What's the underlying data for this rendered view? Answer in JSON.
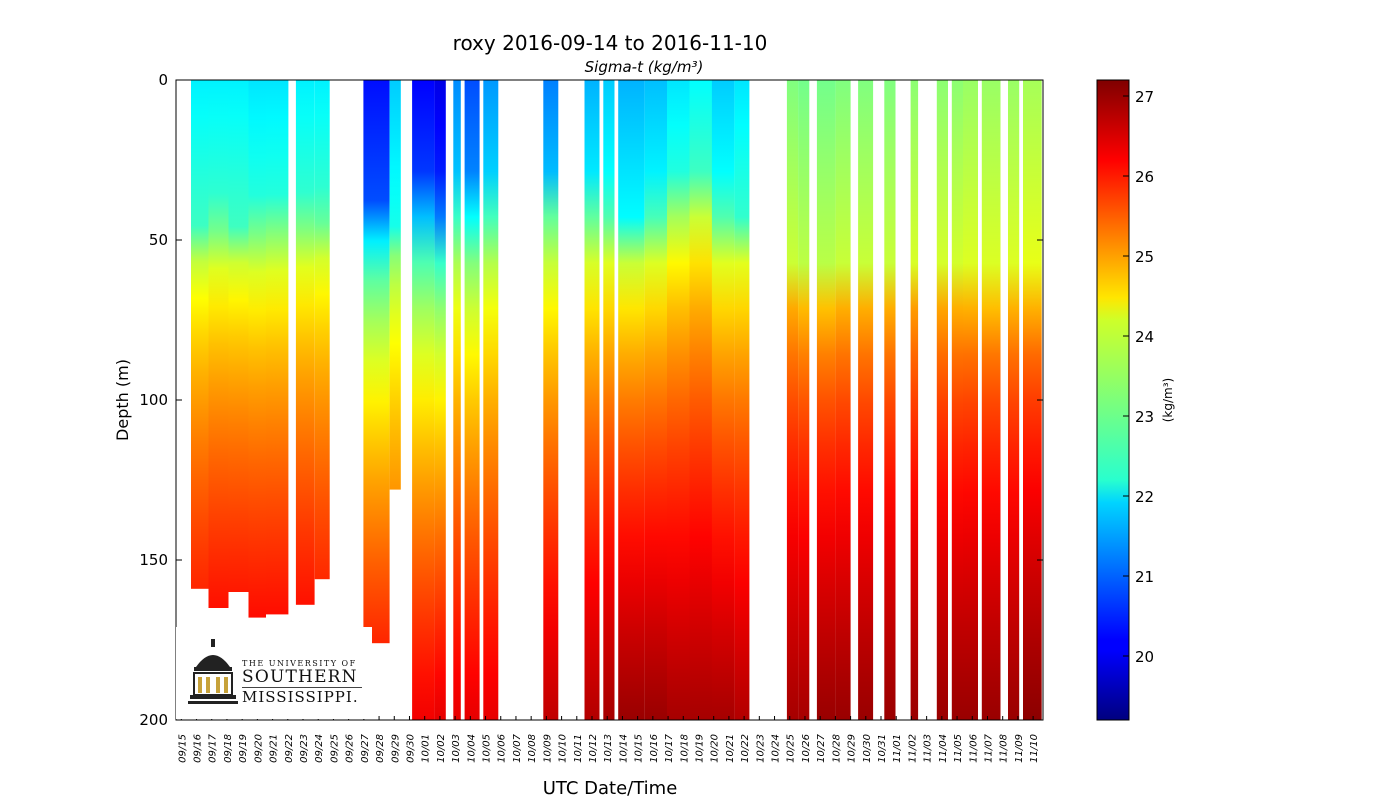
{
  "chart_data": {
    "type": "heatmap",
    "title": "roxy 2016-09-14 to 2016-11-10",
    "subtitle": "Sigma-t (kg/m³)",
    "xlabel": "UTC Date/Time",
    "ylabel": "Depth (m)",
    "ylim": [
      200,
      0
    ],
    "y_ticks": [
      0,
      50,
      100,
      150,
      200
    ],
    "x_start": "2016-09-14",
    "x_end": "2016-11-10",
    "x_tick_labels": [
      "09/15",
      "09/16",
      "09/17",
      "09/18",
      "09/19",
      "09/20",
      "09/21",
      "09/22",
      "09/23",
      "09/24",
      "09/25",
      "09/26",
      "09/27",
      "09/28",
      "09/29",
      "09/30",
      "10/01",
      "10/02",
      "10/03",
      "10/04",
      "10/05",
      "10/06",
      "10/07",
      "10/08",
      "10/09",
      "10/10",
      "10/11",
      "10/12",
      "10/13",
      "10/14",
      "10/15",
      "10/16",
      "10/17",
      "10/18",
      "10/19",
      "10/20",
      "10/21",
      "10/22",
      "10/23",
      "10/24",
      "10/25",
      "10/26",
      "10/27",
      "10/28",
      "10/29",
      "10/30",
      "10/31",
      "11/01",
      "11/02",
      "11/03",
      "11/04",
      "11/05",
      "11/06",
      "11/07",
      "11/08",
      "11/09",
      "11/10"
    ],
    "colorbar": {
      "label": "(kg/m³)",
      "min": 19.2,
      "max": 27.2,
      "ticks": [
        20,
        21,
        22,
        23,
        24,
        25,
        26,
        27
      ],
      "colormap": "jet"
    },
    "profiles": [
      {
        "start": "2016-09-15T00:00",
        "end": "2016-09-16T04:00",
        "surface": 22.1,
        "mixed_depth": 48,
        "bottom": 159,
        "max": 26.4
      },
      {
        "start": "2016-09-16T04:00",
        "end": "2016-09-17T12:00",
        "surface": 22.1,
        "mixed_depth": 46,
        "bottom": 165,
        "max": 26.5
      },
      {
        "start": "2016-09-17T12:00",
        "end": "2016-09-18T20:00",
        "surface": 22.1,
        "mixed_depth": 47,
        "bottom": 160,
        "max": 26.5
      },
      {
        "start": "2016-09-18T20:00",
        "end": "2016-09-20T00:00",
        "surface": 22.0,
        "mixed_depth": 46,
        "bottom": 168,
        "max": 26.5
      },
      {
        "start": "2016-09-20T00:00",
        "end": "2016-09-21T12:00",
        "surface": 22.0,
        "mixed_depth": 45,
        "bottom": 167,
        "max": 26.5
      },
      {
        "start": "2016-09-22T00:00",
        "end": "2016-09-23T06:00",
        "surface": 22.1,
        "mixed_depth": 45,
        "bottom": 164,
        "max": 26.5
      },
      {
        "start": "2016-09-23T06:00",
        "end": "2016-09-24T06:00",
        "surface": 22.1,
        "mixed_depth": 44,
        "bottom": 156,
        "max": 26.4
      },
      {
        "start": "2016-09-26T12:00",
        "end": "2016-09-28T06:00",
        "surface": 20.3,
        "mixed_depth": 45,
        "bottom": 176,
        "max": 26.3
      },
      {
        "start": "2016-09-28T06:00",
        "end": "2016-09-29T00:00",
        "surface": 21.8,
        "mixed_depth": 48,
        "bottom": 128,
        "max": 25.9
      },
      {
        "start": "2016-09-29T18:00",
        "end": "2016-10-01T06:00",
        "surface": 20.2,
        "mixed_depth": 40,
        "bottom": 200,
        "max": 26.3
      },
      {
        "start": "2016-10-01T06:00",
        "end": "2016-10-02T00:00",
        "surface": 20.0,
        "mixed_depth": 42,
        "bottom": 200,
        "max": 26.4
      },
      {
        "start": "2016-10-02T12:00",
        "end": "2016-10-03T00:00",
        "surface": 21.3,
        "mixed_depth": 40,
        "bottom": 200,
        "max": 26.4
      },
      {
        "start": "2016-10-03T06:00",
        "end": "2016-10-04T06:00",
        "surface": 20.8,
        "mixed_depth": 40,
        "bottom": 200,
        "max": 26.4
      },
      {
        "start": "2016-10-04T12:00",
        "end": "2016-10-05T12:00",
        "surface": 21.4,
        "mixed_depth": 40,
        "bottom": 200,
        "max": 26.4
      },
      {
        "start": "2016-10-08T12:00",
        "end": "2016-10-09T12:00",
        "surface": 21.2,
        "mixed_depth": 36,
        "bottom": 200,
        "max": 26.7
      },
      {
        "start": "2016-10-11T06:00",
        "end": "2016-10-12T06:00",
        "surface": 21.6,
        "mixed_depth": 40,
        "bottom": 200,
        "max": 26.8
      },
      {
        "start": "2016-10-12T12:00",
        "end": "2016-10-13T06:00",
        "surface": 21.8,
        "mixed_depth": 42,
        "bottom": 200,
        "max": 26.9
      },
      {
        "start": "2016-10-13T12:00",
        "end": "2016-10-15T06:00",
        "surface": 21.6,
        "mixed_depth": 44,
        "bottom": 200,
        "max": 27.0
      },
      {
        "start": "2016-10-15T06:00",
        "end": "2016-10-16T18:00",
        "surface": 21.7,
        "mixed_depth": 42,
        "bottom": 200,
        "max": 27.0
      },
      {
        "start": "2016-10-16T18:00",
        "end": "2016-10-18T06:00",
        "surface": 22.0,
        "mixed_depth": 38,
        "bottom": 200,
        "max": 26.9
      },
      {
        "start": "2016-10-18T06:00",
        "end": "2016-10-19T18:00",
        "surface": 22.2,
        "mixed_depth": 36,
        "bottom": 200,
        "max": 26.9
      },
      {
        "start": "2016-10-19T18:00",
        "end": "2016-10-21T06:00",
        "surface": 21.8,
        "mixed_depth": 42,
        "bottom": 200,
        "max": 26.9
      },
      {
        "start": "2016-10-21T06:00",
        "end": "2016-10-22T06:00",
        "surface": 22.0,
        "mixed_depth": 44,
        "bottom": 200,
        "max": 26.8
      },
      {
        "start": "2016-10-24T18:00",
        "end": "2016-10-25T12:00",
        "surface": 23.2,
        "mixed_depth": 58,
        "bottom": 200,
        "max": 26.9
      },
      {
        "start": "2016-10-25T12:00",
        "end": "2016-10-26T06:00",
        "surface": 23.1,
        "mixed_depth": 60,
        "bottom": 200,
        "max": 26.9
      },
      {
        "start": "2016-10-26T18:00",
        "end": "2016-10-28T00:00",
        "surface": 23.1,
        "mixed_depth": 62,
        "bottom": 200,
        "max": 27.0
      },
      {
        "start": "2016-10-28T00:00",
        "end": "2016-10-29T00:00",
        "surface": 23.2,
        "mixed_depth": 60,
        "bottom": 200,
        "max": 27.0
      },
      {
        "start": "2016-10-29T12:00",
        "end": "2016-10-30T12:00",
        "surface": 23.2,
        "mixed_depth": 60,
        "bottom": 200,
        "max": 27.0
      },
      {
        "start": "2016-10-31T06:00",
        "end": "2016-11-01T00:00",
        "surface": 23.2,
        "mixed_depth": 60,
        "bottom": 200,
        "max": 27.0
      },
      {
        "start": "2016-11-02T00:00",
        "end": "2016-11-02T12:00",
        "surface": 23.3,
        "mixed_depth": 58,
        "bottom": 200,
        "max": 27.0
      },
      {
        "start": "2016-11-03T18:00",
        "end": "2016-11-04T12:00",
        "surface": 23.3,
        "mixed_depth": 60,
        "bottom": 200,
        "max": 27.0
      },
      {
        "start": "2016-11-04T18:00",
        "end": "2016-11-05T12:00",
        "surface": 23.3,
        "mixed_depth": 62,
        "bottom": 200,
        "max": 27.0
      },
      {
        "start": "2016-11-05T12:00",
        "end": "2016-11-06T12:00",
        "surface": 23.4,
        "mixed_depth": 64,
        "bottom": 200,
        "max": 27.0
      },
      {
        "start": "2016-11-06T18:00",
        "end": "2016-11-08T00:00",
        "surface": 23.4,
        "mixed_depth": 66,
        "bottom": 200,
        "max": 27.0
      },
      {
        "start": "2016-11-08T12:00",
        "end": "2016-11-09T06:00",
        "surface": 23.4,
        "mixed_depth": 64,
        "bottom": 200,
        "max": 27.0
      },
      {
        "start": "2016-11-09T12:00",
        "end": "2016-11-10T18:00",
        "surface": 23.5,
        "mixed_depth": 66,
        "bottom": 200,
        "max": 27.1
      }
    ],
    "legend": "none",
    "grid": false
  },
  "logo": {
    "line1": "THE UNIVERSITY OF",
    "line2": "SOUTHERN",
    "line3": "MISSISSIPPI.",
    "icon": "dome-building-icon",
    "color": "#c7a23a"
  }
}
